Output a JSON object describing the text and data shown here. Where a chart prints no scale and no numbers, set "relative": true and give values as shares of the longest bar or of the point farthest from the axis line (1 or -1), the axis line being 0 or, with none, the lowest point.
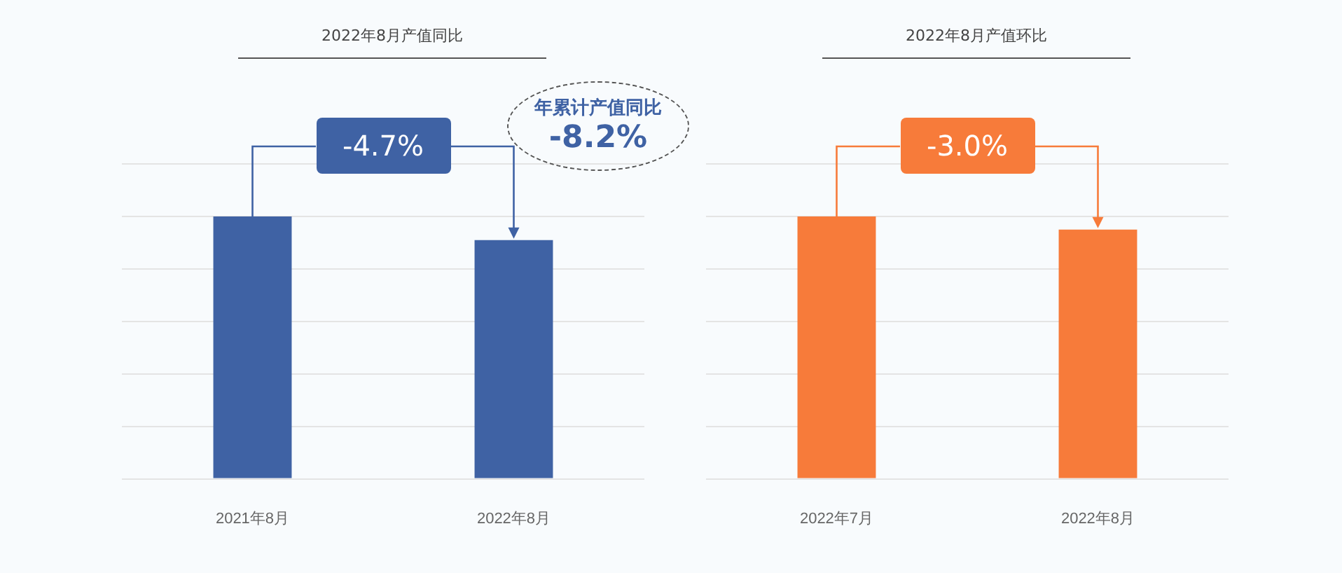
{
  "chart_data": [
    {
      "type": "bar",
      "title": "2022年8月产值同比",
      "categories": [
        "2021年8月",
        "2022年8月"
      ],
      "values": [
        1,
        0.91
      ],
      "color": "#3f62a4",
      "relative": true,
      "grid": "y",
      "annotations": [
        "-4.7%",
        "年累计产值同比",
        "-8.2%"
      ]
    },
    {
      "type": "bar",
      "title": "2022年8月产值环比",
      "categories": [
        "2022年7月",
        "2022年8月"
      ],
      "values": [
        1,
        0.95
      ],
      "color": "#f77b3a",
      "relative": true,
      "grid": "y",
      "annotations": [
        "-3.0%"
      ]
    }
  ]
}
